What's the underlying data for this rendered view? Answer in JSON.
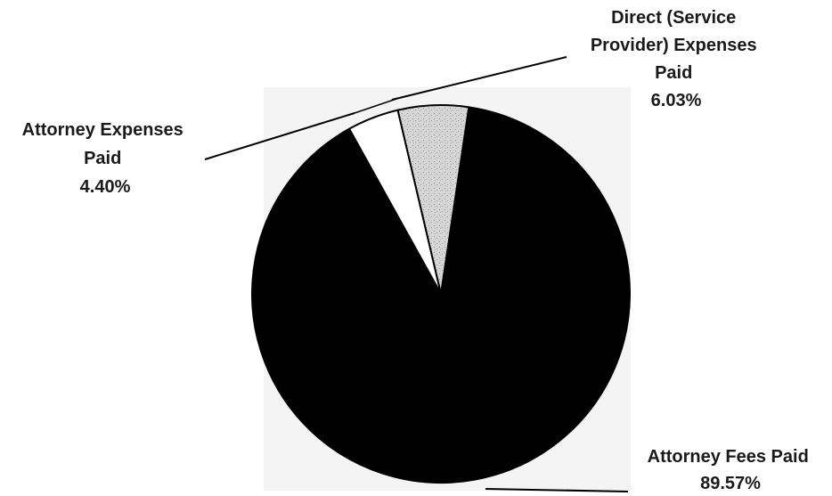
{
  "chart_data": {
    "type": "pie",
    "slices": [
      {
        "label_lines": [
          "Attorney Fees Paid",
          "89.57%"
        ],
        "value": 89.57,
        "color": "#000000"
      },
      {
        "label_lines": [
          "Attorney Expenses",
          "Paid",
          "4.40%"
        ],
        "value": 4.4,
        "color": "#ffffff"
      },
      {
        "label_lines": [
          "Direct (Service",
          "Provider) Expenses",
          "Paid",
          "6.03%"
        ],
        "value": 6.03,
        "color": "#d4d4d4"
      }
    ],
    "start_angle_deg": 8.5,
    "direction": "clockwise",
    "legend": "none (leader-line labels)"
  }
}
